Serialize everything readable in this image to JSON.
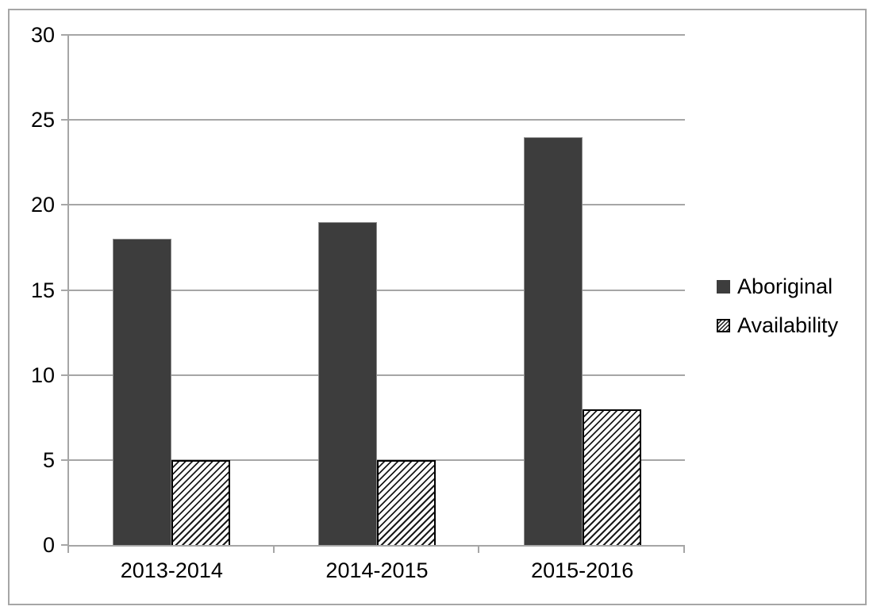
{
  "chart_data": {
    "type": "bar",
    "title": "",
    "xlabel": "",
    "ylabel": "",
    "categories": [
      "2013-2014",
      "2014-2015",
      "2015-2016"
    ],
    "series": [
      {
        "name": "Aboriginal",
        "values": [
          18,
          19,
          24
        ],
        "style": "solid",
        "color": "#3d3d3d"
      },
      {
        "name": "Availability",
        "values": [
          5,
          5,
          8
        ],
        "style": "diagonal-hatch",
        "color": "#000000"
      }
    ],
    "ylim": [
      0,
      30
    ],
    "ytick_step": 5,
    "ytick_labels": [
      "0",
      "5",
      "10",
      "15",
      "20",
      "25",
      "30"
    ],
    "grid": true,
    "legend_position": "right-middle",
    "colors": {
      "gridline": "#a6a6a6",
      "axis": "#a6a6a6",
      "frame_border": "#a6a6a6",
      "text": "#000000",
      "background": "#ffffff"
    }
  }
}
